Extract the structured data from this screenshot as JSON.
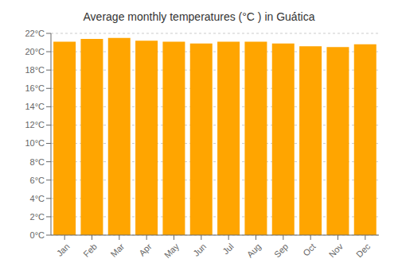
{
  "chart_data": {
    "type": "bar",
    "title": "Average monthly temperatures (°C ) in Guá́tica",
    "categories": [
      "Jan",
      "Feb",
      "Mar",
      "Apr",
      "May",
      "Jun",
      "Jul",
      "Aug",
      "Sep",
      "Oct",
      "Nov",
      "Dec"
    ],
    "values": [
      21.1,
      21.4,
      21.5,
      21.2,
      21.1,
      20.9,
      21.1,
      21.1,
      20.9,
      20.6,
      20.5,
      20.8
    ],
    "color": "#FFA500",
    "ylim": [
      0,
      22
    ],
    "yticks": [
      {
        "value": 0,
        "label": "0°C"
      },
      {
        "value": 2,
        "label": "2°C"
      },
      {
        "value": 4,
        "label": "4°C"
      },
      {
        "value": 6,
        "label": "6°C"
      },
      {
        "value": 8,
        "label": "8°C"
      },
      {
        "value": 10,
        "label": "10°C"
      },
      {
        "value": 12,
        "label": "12°C"
      },
      {
        "value": 14,
        "label": "14°C"
      },
      {
        "value": 16,
        "label": "16°C"
      },
      {
        "value": 18,
        "label": "18°C"
      },
      {
        "value": 20,
        "label": "20°C"
      },
      {
        "value": 22,
        "label": "22°C"
      }
    ],
    "grid": true
  }
}
